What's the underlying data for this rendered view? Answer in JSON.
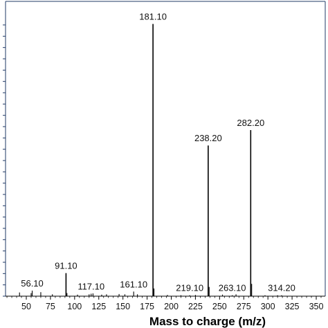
{
  "chart_data": {
    "type": "bar",
    "title": "",
    "xlabel": "Mass to charge (m/z)",
    "ylabel": "",
    "xlim": [
      20,
      360
    ],
    "ylim": [
      0,
      100
    ],
    "grid": false,
    "x_ticks": [
      50,
      75,
      100,
      125,
      150,
      175,
      200,
      225,
      250,
      275,
      300,
      325,
      350
    ],
    "y_tick_count": 24,
    "peaks": [
      {
        "mz": 181.1,
        "intensity": 88.5,
        "label": "181.10"
      },
      {
        "mz": 282.2,
        "intensity": 54.0,
        "label": "282.20"
      },
      {
        "mz": 238.2,
        "intensity": 49.0,
        "label": "238.20"
      },
      {
        "mz": 91.1,
        "intensity": 7.5,
        "label": "91.10"
      },
      {
        "mz": 56.1,
        "intensity": 1.8,
        "label": "56.10"
      },
      {
        "mz": 117.1,
        "intensity": 0.8,
        "label": "117.10"
      },
      {
        "mz": 161.1,
        "intensity": 1.5,
        "label": "161.10"
      },
      {
        "mz": 219.1,
        "intensity": 0.3,
        "label": "219.10"
      },
      {
        "mz": 263.1,
        "intensity": 0.3,
        "label": "263.10"
      },
      {
        "mz": 314.2,
        "intensity": 0.3,
        "label": "314.20"
      },
      {
        "mz": 182.1,
        "intensity": 2.5,
        "label": ""
      },
      {
        "mz": 283.2,
        "intensity": 4.0,
        "label": ""
      },
      {
        "mz": 239.2,
        "intensity": 3.0,
        "label": ""
      },
      {
        "mz": 92.1,
        "intensity": 1.0,
        "label": ""
      },
      {
        "mz": 43.0,
        "intensity": 1.2,
        "label": ""
      },
      {
        "mz": 55.0,
        "intensity": 1.0,
        "label": ""
      },
      {
        "mz": 65.0,
        "intensity": 1.3,
        "label": ""
      },
      {
        "mz": 77.0,
        "intensity": 0.6,
        "label": ""
      },
      {
        "mz": 103.0,
        "intensity": 0.5,
        "label": ""
      },
      {
        "mz": 115.0,
        "intensity": 0.6,
        "label": ""
      },
      {
        "mz": 119.0,
        "intensity": 0.9,
        "label": ""
      },
      {
        "mz": 128.0,
        "intensity": 0.5,
        "label": ""
      },
      {
        "mz": 133.0,
        "intensity": 0.6,
        "label": ""
      },
      {
        "mz": 146.0,
        "intensity": 0.7,
        "label": ""
      },
      {
        "mz": 152.0,
        "intensity": 0.6,
        "label": ""
      },
      {
        "mz": 165.0,
        "intensity": 0.6,
        "label": ""
      },
      {
        "mz": 196.0,
        "intensity": 0.4,
        "label": ""
      },
      {
        "mz": 210.0,
        "intensity": 0.3,
        "label": ""
      },
      {
        "mz": 225.0,
        "intensity": 0.4,
        "label": ""
      },
      {
        "mz": 253.0,
        "intensity": 0.5,
        "label": ""
      },
      {
        "mz": 267.0,
        "intensity": 0.6,
        "label": ""
      },
      {
        "mz": 297.0,
        "intensity": 0.3,
        "label": ""
      },
      {
        "mz": 310.0,
        "intensity": 0.3,
        "label": ""
      }
    ],
    "colors": {
      "line": "#000000",
      "axis": "#1f3864"
    }
  }
}
